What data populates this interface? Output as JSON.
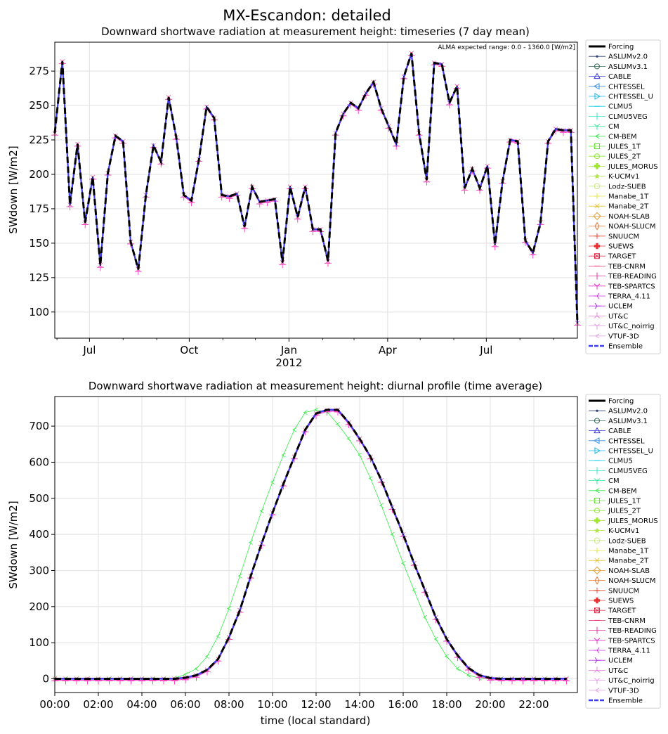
{
  "suptitle": "MX-Escandon: detailed",
  "colors": {
    "forcing": "#000000",
    "ensemble": "#3c3cf0",
    "models_pink": "#ff44cc",
    "models_purple": "#9933ff",
    "cm_bem": "#33ee44"
  },
  "legend": [
    {
      "label": "Forcing",
      "color": "#000000",
      "marker": "line-bold"
    },
    {
      "label": "ASLUMv2.0",
      "color": "#2c3e7a",
      "marker": "dot"
    },
    {
      "label": "ASLUMv3.1",
      "color": "#2e6b52",
      "marker": "circle"
    },
    {
      "label": "CABLE",
      "color": "#3a3adf",
      "marker": "triangle-up"
    },
    {
      "label": "CHTESSEL",
      "color": "#3a8fdf",
      "marker": "triangle-left"
    },
    {
      "label": "CHTESSEL_U",
      "color": "#1ab6e6",
      "marker": "triangle-right"
    },
    {
      "label": "CLMU5",
      "color": "#1acde6",
      "marker": "hline"
    },
    {
      "label": "CLMU5VEG",
      "color": "#33e6cf",
      "marker": "vline"
    },
    {
      "label": "CM",
      "color": "#33e69a",
      "marker": "tri-down"
    },
    {
      "label": "CM-BEM",
      "color": "#33e64d",
      "marker": "caret-left"
    },
    {
      "label": "JULES_1T",
      "color": "#66e633",
      "marker": "square"
    },
    {
      "label": "JULES_2T",
      "color": "#8ae633",
      "marker": "octagon"
    },
    {
      "label": "JULES_MORUS",
      "color": "#a0e633",
      "marker": "plus-filled"
    },
    {
      "label": "K-UCMv1",
      "color": "#b0e64d",
      "marker": "star"
    },
    {
      "label": "Lodz-SUEB",
      "color": "#c8e680",
      "marker": "hexagon"
    },
    {
      "label": "Manabe_1T",
      "color": "#e6e64d",
      "marker": "plus"
    },
    {
      "label": "Manabe_2T",
      "color": "#e6c233",
      "marker": "x"
    },
    {
      "label": "NOAH-SLAB",
      "color": "#e69a33",
      "marker": "diamond"
    },
    {
      "label": "NOAH-SLUCM",
      "color": "#e67a33",
      "marker": "thin-diamond"
    },
    {
      "label": "SNUUCM",
      "color": "#e64d33",
      "marker": "plus"
    },
    {
      "label": "SUEWS",
      "color": "#e63333",
      "marker": "plus-filled"
    },
    {
      "label": "TARGET",
      "color": "#e6334d",
      "marker": "square-x"
    },
    {
      "label": "TEB-CNRM",
      "color": "#e63373",
      "marker": "hline"
    },
    {
      "label": "TEB-READING",
      "color": "#e633a6",
      "marker": "vline"
    },
    {
      "label": "TEB-SPARTCS",
      "color": "#e633cc",
      "marker": "tri-down"
    },
    {
      "label": "TERRA_4.11",
      "color": "#cc33e6",
      "marker": "tri-left"
    },
    {
      "label": "UCLEM",
      "color": "#b033e6",
      "marker": "tri-right"
    },
    {
      "label": "UT&C",
      "color": "#e680d6",
      "marker": "tri-up"
    },
    {
      "label": "UT&C_noirrig",
      "color": "#e699e6",
      "marker": "tri-down"
    },
    {
      "label": "VTUF-3D",
      "color": "#e6a6e6",
      "marker": "caret-left"
    },
    {
      "label": "Ensemble",
      "color": "#3c3cf0",
      "marker": "line-dash"
    }
  ],
  "chart_data": [
    {
      "type": "line",
      "title": "Downward shortwave radiation at measurement height: timeseries (7 day mean)",
      "ylabel": "SWdown [W/m2]",
      "xlabel": "",
      "annotation": "ALMA expected range: 0.0 - 1360.0 [W/m2]",
      "xlim": [
        "2011-05-30",
        "2012-09-23"
      ],
      "ylim": [
        81,
        296
      ],
      "yticks": [
        100,
        125,
        150,
        175,
        200,
        225,
        250,
        275
      ],
      "xticks": [
        {
          "date": "2011-07-01",
          "label": "Jul",
          "sub": ""
        },
        {
          "date": "2011-10-01",
          "label": "Oct",
          "sub": ""
        },
        {
          "date": "2012-01-01",
          "label": "Jan",
          "sub": "2012"
        },
        {
          "date": "2012-04-01",
          "label": "Apr",
          "sub": ""
        },
        {
          "date": "2012-07-01",
          "label": "Jul",
          "sub": ""
        }
      ],
      "minor_xticks": [
        "2011-06-01",
        "2011-08-01",
        "2011-09-01",
        "2011-11-01",
        "2011-12-01",
        "2012-02-01",
        "2012-03-01",
        "2012-05-01",
        "2012-06-01",
        "2012-08-01",
        "2012-09-01"
      ],
      "x": [
        "2011-05-30",
        "2011-06-06",
        "2011-06-13",
        "2011-06-20",
        "2011-06-27",
        "2011-07-04",
        "2011-07-11",
        "2011-07-18",
        "2011-07-25",
        "2011-08-01",
        "2011-08-08",
        "2011-08-15",
        "2011-08-22",
        "2011-08-29",
        "2011-09-05",
        "2011-09-12",
        "2011-09-19",
        "2011-09-26",
        "2011-10-03",
        "2011-10-10",
        "2011-10-17",
        "2011-10-24",
        "2011-10-31",
        "2011-11-07",
        "2011-11-14",
        "2011-11-21",
        "2011-11-28",
        "2011-12-05",
        "2011-12-12",
        "2011-12-19",
        "2011-12-26",
        "2012-01-02",
        "2012-01-09",
        "2012-01-16",
        "2012-01-23",
        "2012-01-30",
        "2012-02-06",
        "2012-02-13",
        "2012-02-20",
        "2012-02-27",
        "2012-03-05",
        "2012-03-12",
        "2012-03-19",
        "2012-03-26",
        "2012-04-02",
        "2012-04-09",
        "2012-04-16",
        "2012-04-23",
        "2012-04-30",
        "2012-05-07",
        "2012-05-14",
        "2012-05-21",
        "2012-05-28",
        "2012-06-04",
        "2012-06-11",
        "2012-06-18",
        "2012-06-25",
        "2012-07-02",
        "2012-07-09",
        "2012-07-16",
        "2012-07-23",
        "2012-07-30",
        "2012-08-06",
        "2012-08-13",
        "2012-08-20",
        "2012-08-27",
        "2012-09-03",
        "2012-09-10",
        "2012-09-17",
        "2012-09-23"
      ],
      "series": [
        {
          "name": "Forcing",
          "values": [
            230,
            282,
            178,
            222,
            165,
            198,
            134,
            201,
            228,
            224,
            151,
            131,
            185,
            221,
            209,
            256,
            227,
            185,
            181,
            211,
            249,
            241,
            185,
            184,
            186,
            162,
            191,
            180,
            181,
            182,
            136,
            191,
            169,
            191,
            160,
            160,
            137,
            230,
            244,
            252,
            248,
            259,
            267,
            248,
            235,
            222,
            271,
            288,
            230,
            196,
            281,
            280,
            252,
            264,
            190,
            204,
            190,
            206,
            149,
            195,
            225,
            224,
            152,
            143,
            165,
            224,
            233,
            232,
            232,
            92
          ]
        }
      ]
    },
    {
      "type": "line",
      "title": "Downward shortwave radiation at measurement height: diurnal profile (time average)",
      "ylabel": "SWdown [W/m2]",
      "xlabel": "time (local standard)",
      "xlim": [
        0,
        24
      ],
      "ylim": [
        -38,
        782
      ],
      "yticks": [
        0,
        100,
        200,
        300,
        400,
        500,
        600,
        700
      ],
      "xticks": [
        {
          "hour": 0,
          "label": "00:00"
        },
        {
          "hour": 2,
          "label": "02:00"
        },
        {
          "hour": 4,
          "label": "04:00"
        },
        {
          "hour": 6,
          "label": "06:00"
        },
        {
          "hour": 8,
          "label": "08:00"
        },
        {
          "hour": 10,
          "label": "10:00"
        },
        {
          "hour": 12,
          "label": "12:00"
        },
        {
          "hour": 14,
          "label": "14:00"
        },
        {
          "hour": 16,
          "label": "16:00"
        },
        {
          "hour": 18,
          "label": "18:00"
        },
        {
          "hour": 20,
          "label": "20:00"
        },
        {
          "hour": 22,
          "label": "22:00"
        }
      ],
      "x": [
        0,
        0.5,
        1,
        1.5,
        2,
        2.5,
        3,
        3.5,
        4,
        4.5,
        5,
        5.5,
        6,
        6.5,
        7,
        7.5,
        8,
        8.5,
        9,
        9.5,
        10,
        10.5,
        11,
        11.5,
        12,
        12.5,
        13,
        13.5,
        14,
        14.5,
        15,
        15.5,
        16,
        16.5,
        17,
        17.5,
        18,
        18.5,
        19,
        19.5,
        20,
        20.5,
        21,
        21.5,
        22,
        22.5,
        23,
        23.5
      ],
      "series": [
        {
          "name": "Forcing",
          "values": [
            0,
            0,
            0,
            0,
            0,
            0,
            0,
            0,
            0,
            0,
            0,
            0,
            3,
            10,
            25,
            55,
            115,
            190,
            285,
            375,
            460,
            540,
            615,
            690,
            735,
            745,
            745,
            710,
            665,
            615,
            550,
            475,
            400,
            320,
            245,
            170,
            110,
            65,
            30,
            10,
            2,
            0,
            0,
            0,
            0,
            0,
            0,
            0
          ]
        },
        {
          "name": "CM-BEM",
          "values": [
            0,
            0,
            0,
            0,
            0,
            0,
            0,
            0,
            0,
            0,
            0,
            2,
            12,
            28,
            62,
            118,
            195,
            285,
            378,
            465,
            545,
            620,
            690,
            738,
            745,
            740,
            705,
            665,
            620,
            555,
            480,
            400,
            320,
            245,
            170,
            110,
            62,
            28,
            10,
            2,
            0,
            0,
            0,
            0,
            0,
            0,
            0,
            0
          ]
        }
      ]
    }
  ]
}
